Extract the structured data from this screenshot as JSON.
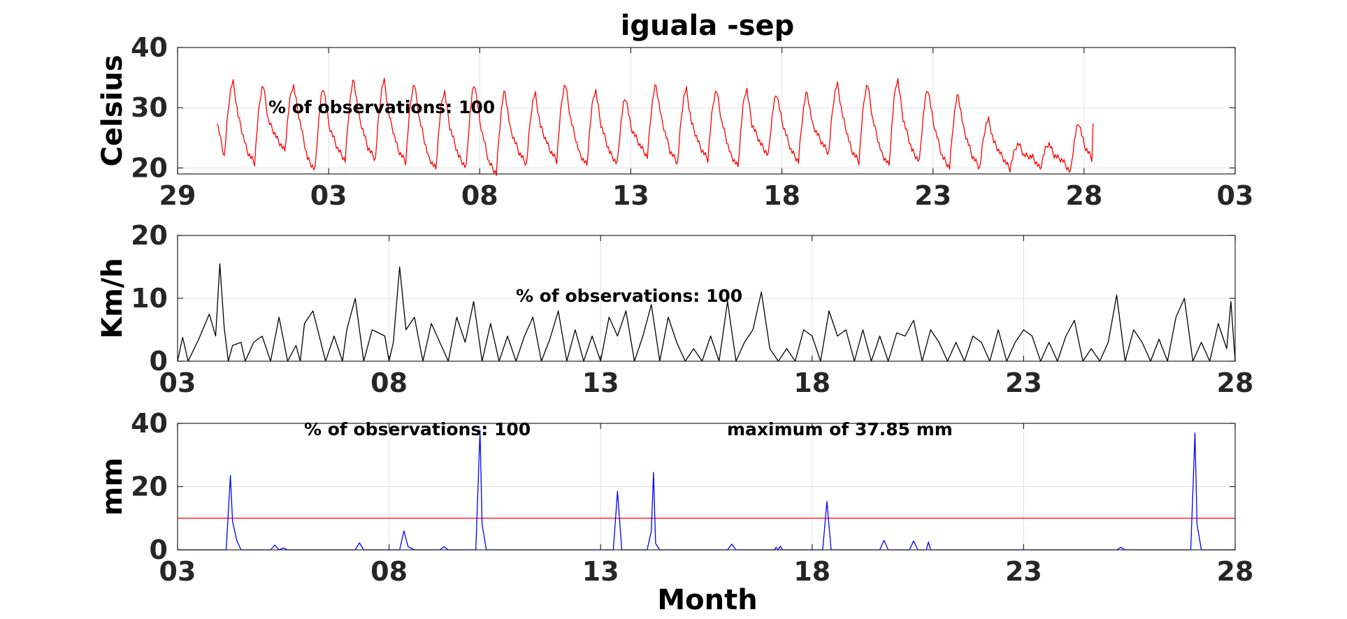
{
  "chart_data": [
    {
      "type": "line",
      "title": "iguala -sep",
      "ylabel": "Celsius",
      "xlabel": "",
      "ylim": [
        19,
        40
      ],
      "yticks": [
        20,
        30,
        40
      ],
      "xlim": [
        29,
        64
      ],
      "xticks": [
        29,
        34,
        39,
        44,
        49,
        54,
        59,
        64
      ],
      "xtick_labels": [
        "29",
        "03",
        "08",
        "13",
        "18",
        "23",
        "28",
        "03"
      ],
      "grid": true,
      "annotation": "% of observations: 100",
      "series": [
        {
          "color": "#ff0000",
          "daily_min": [
            21.8,
            20.8,
            22.8,
            19.6,
            21.2,
            21.4,
            21.0,
            19.8,
            20.0,
            19.0,
            20.6,
            21.2,
            20.4,
            20.6,
            21.8,
            20.8,
            21.4,
            20.2,
            22.0,
            21.0,
            22.4,
            21.0,
            20.4,
            21.0,
            20.0,
            20.0,
            19.8,
            19.8,
            19.2
          ],
          "daily_max": [
            34.2,
            33.6,
            33.6,
            33.2,
            34.4,
            34.4,
            33.8,
            32.6,
            33.8,
            32.6,
            32.2,
            33.8,
            32.8,
            31.6,
            33.6,
            33.0,
            32.8,
            33.0,
            32.2,
            32.4,
            33.8,
            33.8,
            34.6,
            33.0,
            32.0,
            28.0,
            24.0,
            24.0,
            27.4
          ]
        }
      ]
    },
    {
      "type": "line",
      "title": "",
      "ylabel": "Km/h",
      "xlabel": "",
      "ylim": [
        0,
        20
      ],
      "yticks": [
        0,
        10,
        20
      ],
      "xlim": [
        3,
        28
      ],
      "xticks": [
        3,
        8,
        13,
        18,
        23,
        28
      ],
      "xtick_labels": [
        "03",
        "08",
        "13",
        "18",
        "23",
        "28"
      ],
      "grid": true,
      "annotation": "% of observations: 100",
      "series": [
        {
          "color": "#000000",
          "x": [
            3.0,
            3.12,
            3.25,
            3.5,
            3.75,
            3.9,
            4.0,
            4.1,
            4.2,
            4.3,
            4.5,
            4.6,
            4.8,
            5.0,
            5.2,
            5.4,
            5.6,
            5.8,
            5.9,
            6.0,
            6.2,
            6.5,
            6.7,
            6.9,
            7.0,
            7.2,
            7.4,
            7.6,
            7.9,
            8.0,
            8.1,
            8.25,
            8.4,
            8.6,
            8.8,
            9.0,
            9.2,
            9.4,
            9.6,
            9.8,
            10.0,
            10.2,
            10.4,
            10.6,
            10.8,
            11.0,
            11.2,
            11.4,
            11.6,
            11.8,
            12.0,
            12.2,
            12.4,
            12.6,
            12.8,
            13.0,
            13.2,
            13.4,
            13.6,
            13.8,
            14.0,
            14.2,
            14.4,
            14.6,
            14.8,
            15.0,
            15.2,
            15.4,
            15.6,
            15.8,
            16.0,
            16.2,
            16.4,
            16.6,
            16.8,
            17.0,
            17.2,
            17.4,
            17.6,
            17.8,
            18.0,
            18.2,
            18.4,
            18.6,
            18.8,
            19.0,
            19.2,
            19.4,
            19.6,
            19.8,
            20.0,
            20.2,
            20.4,
            20.6,
            20.8,
            21.0,
            21.2,
            21.4,
            21.6,
            21.8,
            22.0,
            22.2,
            22.4,
            22.6,
            22.8,
            23.0,
            23.2,
            23.4,
            23.6,
            23.8,
            24.0,
            24.2,
            24.4,
            24.6,
            24.8,
            25.0,
            25.2,
            25.4,
            25.6,
            25.8,
            26.0,
            26.2,
            26.4,
            26.6,
            26.8,
            27.0,
            27.2,
            27.4,
            27.6,
            27.8,
            27.9,
            28.0
          ],
          "values": [
            0,
            3.8,
            0,
            3.5,
            7.5,
            4.0,
            15.5,
            5.5,
            0,
            2.5,
            3.0,
            0,
            3.0,
            4.0,
            0,
            7.0,
            0,
            2.5,
            0,
            6.0,
            8.0,
            0,
            4.0,
            0,
            5.0,
            10.0,
            0,
            5.0,
            4.0,
            0,
            3.0,
            15.0,
            5.0,
            7.0,
            0,
            6.0,
            3.0,
            0,
            7.0,
            3.0,
            9.5,
            0,
            6.0,
            0,
            4.0,
            0,
            4.0,
            7.0,
            0,
            3.5,
            8.0,
            0,
            5.0,
            0,
            4.0,
            0,
            7.0,
            4.0,
            8.0,
            0,
            4.0,
            9.0,
            0,
            7.0,
            3.0,
            0,
            2.0,
            0,
            4.0,
            0,
            9.5,
            0,
            3.0,
            5.0,
            11.0,
            2.0,
            0,
            2.0,
            0,
            5.0,
            4.0,
            0,
            8.0,
            4.0,
            5.0,
            0,
            5.0,
            0,
            4.0,
            0,
            4.5,
            4.0,
            6.5,
            0,
            5.0,
            3.0,
            0,
            3.0,
            0,
            4.0,
            3.0,
            0,
            5.0,
            0,
            3.0,
            5.0,
            4.0,
            0,
            3.0,
            0,
            4.0,
            6.5,
            0,
            2.0,
            0,
            3.0,
            10.5,
            0,
            5.0,
            3.0,
            0,
            3.5,
            0,
            7.0,
            10.0,
            0,
            3.0,
            0,
            6.0,
            2.0,
            9.5,
            0
          ]
        }
      ]
    },
    {
      "type": "line",
      "title": "",
      "ylabel": "mm",
      "xlabel": "Month",
      "ylim": [
        0,
        40
      ],
      "yticks": [
        0,
        20,
        40
      ],
      "xlim": [
        3,
        28
      ],
      "xticks": [
        3,
        8,
        13,
        18,
        23,
        28
      ],
      "xtick_labels": [
        "03",
        "08",
        "13",
        "18",
        "23",
        "28"
      ],
      "grid": true,
      "annotations": [
        "% of observations: 100",
        "maximum of 37.85 mm"
      ],
      "threshold": {
        "value": 10,
        "color": "#ff0000"
      },
      "series": [
        {
          "color": "#0000ff",
          "x": [
            3.0,
            4.15,
            4.25,
            4.3,
            4.4,
            4.5,
            5.2,
            5.3,
            5.4,
            5.5,
            5.6,
            7.2,
            7.3,
            7.4,
            8.25,
            8.35,
            8.45,
            8.6,
            9.2,
            9.3,
            9.4,
            10.05,
            10.15,
            10.2,
            10.3,
            13.3,
            13.4,
            13.5,
            14.1,
            14.2,
            14.25,
            14.3,
            14.4,
            16.0,
            16.1,
            16.2,
            16.3,
            17.1,
            17.15,
            17.2,
            17.25,
            17.3,
            18.25,
            18.35,
            18.45,
            19.6,
            19.7,
            19.8,
            20.3,
            20.4,
            20.5,
            20.7,
            20.75,
            20.8,
            25.2,
            25.3,
            25.4,
            26.95,
            27.05,
            27.1,
            27.2,
            28.0
          ],
          "values": [
            0,
            0,
            23.5,
            9,
            3,
            0,
            0,
            1.5,
            0,
            0.6,
            0,
            0,
            2.2,
            0,
            0,
            6.0,
            1,
            0,
            0,
            1,
            0,
            0,
            37.85,
            8,
            0,
            0,
            18.5,
            0,
            0,
            6,
            24.5,
            2,
            0,
            0,
            1.8,
            0,
            0,
            0,
            0.8,
            0,
            1.2,
            0,
            0,
            15.3,
            0,
            0,
            3.0,
            0,
            0,
            2.8,
            0,
            0,
            2.5,
            0,
            0,
            0.8,
            0,
            0,
            37.0,
            8,
            0,
            0
          ]
        }
      ]
    }
  ]
}
